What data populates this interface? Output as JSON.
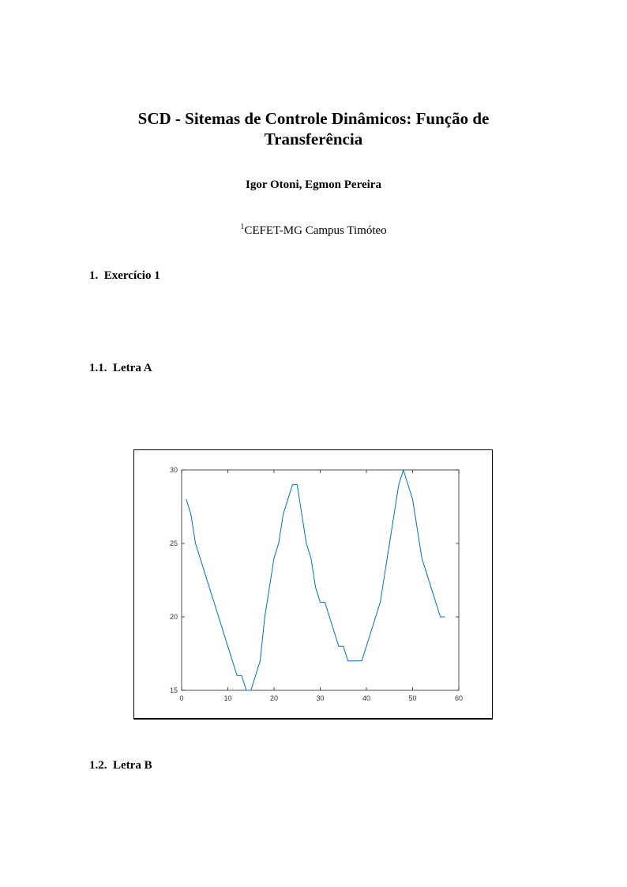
{
  "header": {
    "title_line1": "SCD - Sitemas de Controle Dinâmicos: Função de",
    "title_line2": "Transferência",
    "authors": "Igor Otoni, Egmon Pereira",
    "affiliation_mark": "1",
    "affiliation": "CEFET-MG Campus Timóteo"
  },
  "sections": [
    {
      "number": "1.",
      "title": "Exercício 1"
    },
    {
      "number": "1.1.",
      "title": "Letra A"
    },
    {
      "number": "1.2.",
      "title": "Letra B"
    }
  ],
  "chart_data": {
    "type": "line",
    "title": "",
    "xlabel": "",
    "ylabel": "",
    "xlim": [
      0,
      60
    ],
    "ylim": [
      15,
      30
    ],
    "xticks": [
      "0",
      "10",
      "20",
      "30",
      "40",
      "50",
      "60"
    ],
    "yticks": [
      "15",
      "20",
      "25",
      "30"
    ],
    "grid": false,
    "line_color": "#0072BD",
    "x": [
      1,
      2,
      3,
      4,
      5,
      6,
      7,
      8,
      9,
      10,
      11,
      12,
      13,
      14,
      15,
      16,
      17,
      18,
      19,
      20,
      21,
      22,
      23,
      24,
      25,
      26,
      27,
      28,
      29,
      30,
      31,
      32,
      33,
      34,
      35,
      36,
      37,
      38,
      39,
      40,
      41,
      42,
      43,
      44,
      45,
      46,
      47,
      48,
      49,
      50,
      51,
      52,
      53,
      54,
      55,
      56,
      57
    ],
    "y": [
      28,
      27,
      25,
      24,
      23,
      22,
      21,
      20,
      19,
      18,
      17,
      16,
      16,
      15,
      15,
      16,
      17,
      20,
      22,
      24,
      25,
      27,
      28,
      29,
      29,
      27,
      25,
      24,
      22,
      21,
      21,
      20,
      19,
      18,
      18,
      17,
      17,
      17,
      17,
      18,
      19,
      20,
      21,
      23,
      25,
      27,
      29,
      30,
      29,
      28,
      26,
      24,
      23,
      22,
      21,
      20,
      20
    ]
  }
}
